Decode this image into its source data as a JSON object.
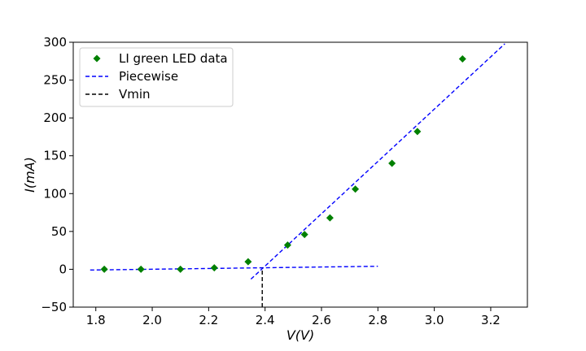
{
  "chart_data": {
    "type": "scatter",
    "xlabel": "V(V)",
    "ylabel": "I(mA)",
    "xlim": [
      1.72,
      3.33
    ],
    "ylim": [
      -50,
      300
    ],
    "xticks": [
      1.8,
      2.0,
      2.2,
      2.4,
      2.6,
      2.8,
      3.0,
      3.2
    ],
    "yticks": [
      -50,
      0,
      50,
      100,
      150,
      200,
      250,
      300
    ],
    "xtick_labels": [
      "1.8",
      "2.0",
      "2.2",
      "2.4",
      "2.6",
      "2.8",
      "3.0",
      "3.2"
    ],
    "ytick_labels": [
      "−50",
      "0",
      "50",
      "100",
      "150",
      "200",
      "250",
      "300"
    ],
    "grid": false,
    "legend_position": "upper-left",
    "series": [
      {
        "name": "LI green LED data",
        "kind": "scatter",
        "marker": "diamond",
        "color": "#008000",
        "x": [
          1.83,
          1.96,
          2.1,
          2.22,
          2.34,
          2.48,
          2.54,
          2.63,
          2.72,
          2.85,
          2.94,
          3.1
        ],
        "y": [
          0,
          0,
          0,
          2,
          10,
          32,
          46,
          68,
          106,
          140,
          182,
          278
        ]
      },
      {
        "name": "Piecewise",
        "kind": "line",
        "style": "dashed",
        "color": "#0000ff",
        "segments": [
          {
            "x": [
              1.78,
              2.8
            ],
            "y": [
              -1,
              4
            ]
          },
          {
            "x": [
              2.35,
              3.25
            ],
            "y": [
              -13,
              298
            ]
          }
        ]
      },
      {
        "name": "Vmin",
        "kind": "vline",
        "style": "dashed",
        "color": "#000000",
        "x": 2.39,
        "y": [
          -50,
          2
        ]
      }
    ]
  }
}
